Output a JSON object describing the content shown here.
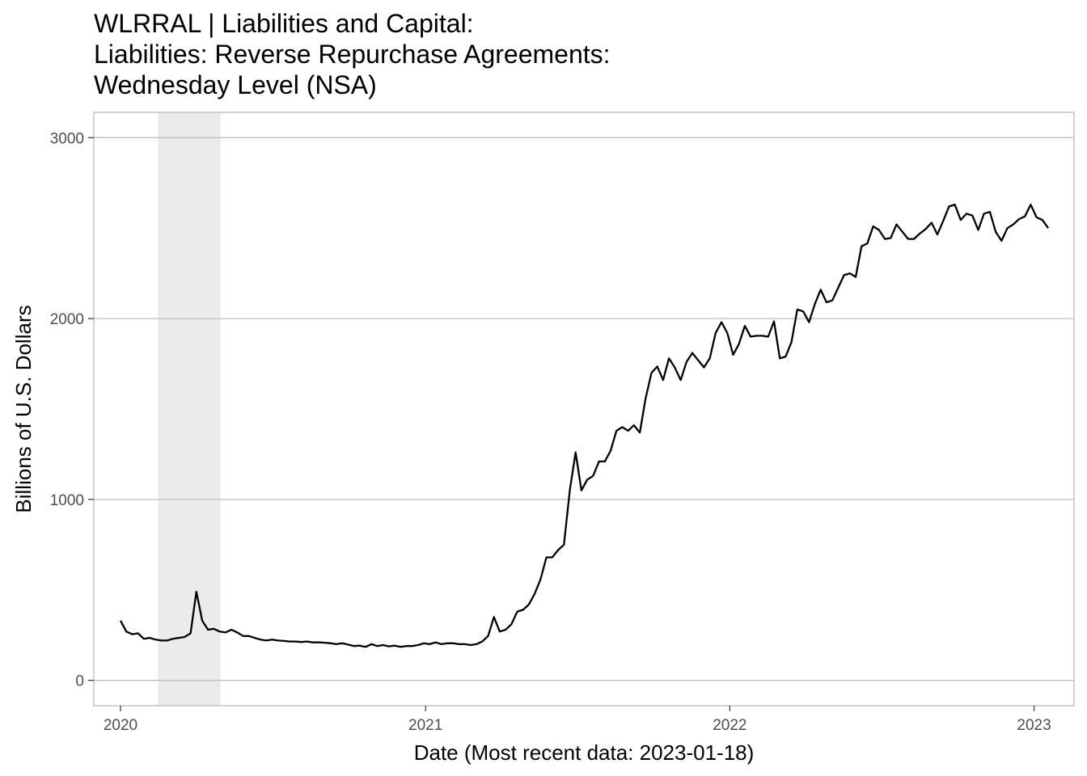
{
  "title_lines": [
    "WLRRAL | Liabilities and Capital:",
    "Liabilities: Reverse Repurchase Agreements:",
    "Wednesday Level (NSA)"
  ],
  "chart_data": {
    "type": "line",
    "title": "WLRRAL | Liabilities and Capital: Liabilities: Reverse Repurchase Agreements: Wednesday Level (NSA)",
    "xlabel": "Date (Most recent data: 2023-01-18)",
    "ylabel": "Billions of U.S. Dollars",
    "x_ticks": [
      "2020",
      "2021",
      "2022",
      "2023"
    ],
    "y_ticks": [
      0,
      1000,
      2000,
      3000
    ],
    "xlim": [
      "2019-11-30",
      "2023-02-18"
    ],
    "ylim": [
      -140,
      3140
    ],
    "grid": true,
    "recession_shading": {
      "start": "2020-02-15",
      "end": "2020-04-30"
    },
    "series": [
      {
        "color": "#000000",
        "points": [
          [
            "2020-01-01",
            330
          ],
          [
            "2020-01-08",
            270
          ],
          [
            "2020-01-15",
            255
          ],
          [
            "2020-01-22",
            260
          ],
          [
            "2020-01-29",
            230
          ],
          [
            "2020-02-05",
            235
          ],
          [
            "2020-02-12",
            225
          ],
          [
            "2020-02-19",
            220
          ],
          [
            "2020-02-26",
            220
          ],
          [
            "2020-03-04",
            230
          ],
          [
            "2020-03-11",
            235
          ],
          [
            "2020-03-18",
            240
          ],
          [
            "2020-03-25",
            260
          ],
          [
            "2020-04-01",
            490
          ],
          [
            "2020-04-08",
            330
          ],
          [
            "2020-04-15",
            280
          ],
          [
            "2020-04-22",
            285
          ],
          [
            "2020-04-29",
            270
          ],
          [
            "2020-05-06",
            265
          ],
          [
            "2020-05-13",
            280
          ],
          [
            "2020-05-20",
            265
          ],
          [
            "2020-05-27",
            245
          ],
          [
            "2020-06-03",
            245
          ],
          [
            "2020-06-10",
            235
          ],
          [
            "2020-06-17",
            225
          ],
          [
            "2020-06-24",
            220
          ],
          [
            "2020-07-01",
            225
          ],
          [
            "2020-07-08",
            220
          ],
          [
            "2020-07-15",
            218
          ],
          [
            "2020-07-22",
            215
          ],
          [
            "2020-07-29",
            215
          ],
          [
            "2020-08-05",
            212
          ],
          [
            "2020-08-12",
            215
          ],
          [
            "2020-08-19",
            210
          ],
          [
            "2020-08-26",
            210
          ],
          [
            "2020-09-02",
            208
          ],
          [
            "2020-09-09",
            205
          ],
          [
            "2020-09-16",
            200
          ],
          [
            "2020-09-23",
            205
          ],
          [
            "2020-09-30",
            198
          ],
          [
            "2020-10-07",
            190
          ],
          [
            "2020-10-14",
            192
          ],
          [
            "2020-10-21",
            185
          ],
          [
            "2020-10-28",
            200
          ],
          [
            "2020-11-04",
            190
          ],
          [
            "2020-11-11",
            195
          ],
          [
            "2020-11-18",
            188
          ],
          [
            "2020-11-25",
            192
          ],
          [
            "2020-12-02",
            185
          ],
          [
            "2020-12-09",
            190
          ],
          [
            "2020-12-16",
            190
          ],
          [
            "2020-12-23",
            195
          ],
          [
            "2020-12-30",
            205
          ],
          [
            "2021-01-06",
            200
          ],
          [
            "2021-01-13",
            210
          ],
          [
            "2021-01-20",
            200
          ],
          [
            "2021-01-27",
            205
          ],
          [
            "2021-02-03",
            205
          ],
          [
            "2021-02-10",
            200
          ],
          [
            "2021-02-17",
            200
          ],
          [
            "2021-02-24",
            195
          ],
          [
            "2021-03-03",
            200
          ],
          [
            "2021-03-10",
            215
          ],
          [
            "2021-03-17",
            245
          ],
          [
            "2021-03-24",
            350
          ],
          [
            "2021-03-31",
            270
          ],
          [
            "2021-04-07",
            280
          ],
          [
            "2021-04-14",
            310
          ],
          [
            "2021-04-21",
            380
          ],
          [
            "2021-04-28",
            390
          ],
          [
            "2021-05-05",
            420
          ],
          [
            "2021-05-12",
            480
          ],
          [
            "2021-05-19",
            560
          ],
          [
            "2021-05-26",
            680
          ],
          [
            "2021-06-02",
            680
          ],
          [
            "2021-06-09",
            720
          ],
          [
            "2021-06-16",
            750
          ],
          [
            "2021-06-23",
            1050
          ],
          [
            "2021-06-30",
            1260
          ],
          [
            "2021-07-07",
            1050
          ],
          [
            "2021-07-14",
            1110
          ],
          [
            "2021-07-21",
            1130
          ],
          [
            "2021-07-28",
            1210
          ],
          [
            "2021-08-04",
            1210
          ],
          [
            "2021-08-11",
            1270
          ],
          [
            "2021-08-18",
            1380
          ],
          [
            "2021-08-25",
            1400
          ],
          [
            "2021-09-01",
            1380
          ],
          [
            "2021-09-08",
            1410
          ],
          [
            "2021-09-15",
            1370
          ],
          [
            "2021-09-22",
            1560
          ],
          [
            "2021-09-29",
            1700
          ],
          [
            "2021-10-06",
            1735
          ],
          [
            "2021-10-13",
            1660
          ],
          [
            "2021-10-20",
            1780
          ],
          [
            "2021-10-27",
            1730
          ],
          [
            "2021-11-03",
            1660
          ],
          [
            "2021-11-10",
            1760
          ],
          [
            "2021-11-17",
            1810
          ],
          [
            "2021-11-24",
            1770
          ],
          [
            "2021-12-01",
            1730
          ],
          [
            "2021-12-08",
            1780
          ],
          [
            "2021-12-15",
            1920
          ],
          [
            "2021-12-22",
            1980
          ],
          [
            "2021-12-29",
            1920
          ],
          [
            "2022-01-05",
            1800
          ],
          [
            "2022-01-12",
            1860
          ],
          [
            "2022-01-19",
            1960
          ],
          [
            "2022-01-26",
            1900
          ],
          [
            "2022-02-02",
            1905
          ],
          [
            "2022-02-09",
            1905
          ],
          [
            "2022-02-16",
            1900
          ],
          [
            "2022-02-23",
            1985
          ],
          [
            "2022-03-02",
            1780
          ],
          [
            "2022-03-09",
            1790
          ],
          [
            "2022-03-16",
            1870
          ],
          [
            "2022-03-23",
            2050
          ],
          [
            "2022-03-30",
            2040
          ],
          [
            "2022-04-06",
            1980
          ],
          [
            "2022-04-13",
            2080
          ],
          [
            "2022-04-20",
            2160
          ],
          [
            "2022-04-27",
            2090
          ],
          [
            "2022-05-04",
            2100
          ],
          [
            "2022-05-11",
            2170
          ],
          [
            "2022-05-18",
            2240
          ],
          [
            "2022-05-25",
            2250
          ],
          [
            "2022-06-01",
            2230
          ],
          [
            "2022-06-08",
            2400
          ],
          [
            "2022-06-15",
            2415
          ],
          [
            "2022-06-22",
            2510
          ],
          [
            "2022-06-29",
            2490
          ],
          [
            "2022-07-06",
            2440
          ],
          [
            "2022-07-13",
            2445
          ],
          [
            "2022-07-20",
            2520
          ],
          [
            "2022-07-27",
            2480
          ],
          [
            "2022-08-03",
            2440
          ],
          [
            "2022-08-10",
            2440
          ],
          [
            "2022-08-17",
            2470
          ],
          [
            "2022-08-24",
            2495
          ],
          [
            "2022-08-31",
            2530
          ],
          [
            "2022-09-07",
            2465
          ],
          [
            "2022-09-14",
            2540
          ],
          [
            "2022-09-21",
            2620
          ],
          [
            "2022-09-28",
            2630
          ],
          [
            "2022-10-05",
            2545
          ],
          [
            "2022-10-12",
            2580
          ],
          [
            "2022-10-19",
            2570
          ],
          [
            "2022-10-26",
            2490
          ],
          [
            "2022-11-02",
            2580
          ],
          [
            "2022-11-09",
            2590
          ],
          [
            "2022-11-16",
            2480
          ],
          [
            "2022-11-23",
            2430
          ],
          [
            "2022-11-30",
            2500
          ],
          [
            "2022-12-07",
            2520
          ],
          [
            "2022-12-14",
            2550
          ],
          [
            "2022-12-21",
            2565
          ],
          [
            "2022-12-28",
            2630
          ],
          [
            "2023-01-04",
            2560
          ],
          [
            "2023-01-11",
            2545
          ],
          [
            "2023-01-18",
            2500
          ]
        ]
      }
    ]
  }
}
